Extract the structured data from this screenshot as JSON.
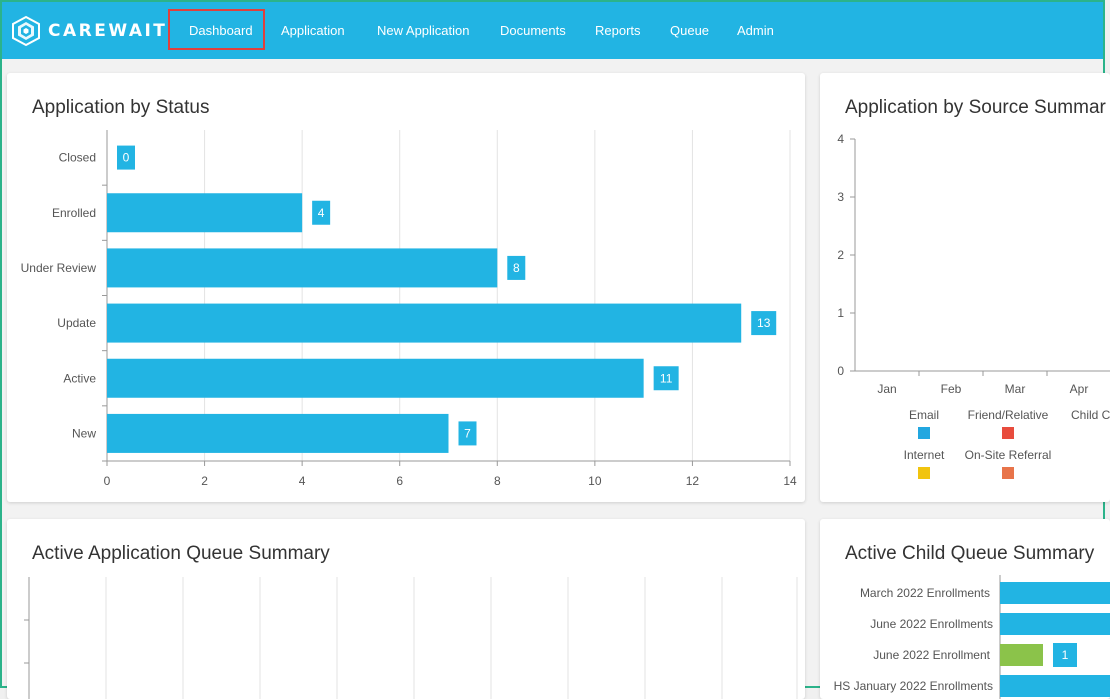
{
  "nav": {
    "logo_text": "CAREWAIT",
    "items": [
      {
        "label": "Dashboard",
        "active": true
      },
      {
        "label": "Application"
      },
      {
        "label": "New Application"
      },
      {
        "label": "Documents"
      },
      {
        "label": "Reports"
      },
      {
        "label": "Queue"
      },
      {
        "label": "Admin"
      }
    ]
  },
  "colors": {
    "accent": "#22b4e3",
    "active_border": "#e0403c"
  },
  "cards": {
    "status": {
      "title": "Application by Status"
    },
    "source": {
      "title": "Application by Source Summar"
    },
    "app_queue": {
      "title": "Active Application Queue Summary"
    },
    "child_queue": {
      "title": "Active Child Queue Summary"
    }
  },
  "chart_data": [
    {
      "type": "bar",
      "orientation": "horizontal",
      "title": "Application by Status",
      "categories": [
        "Closed",
        "Enrolled",
        "Under Review",
        "Update",
        "Active",
        "New"
      ],
      "values": [
        0,
        4,
        8,
        13,
        11,
        7
      ],
      "xlim": [
        0,
        14
      ],
      "xticks": [
        0,
        2,
        4,
        6,
        8,
        10,
        12,
        14
      ],
      "color": "#22b4e3",
      "grid": true
    },
    {
      "type": "line",
      "title": "Application by Source Summar",
      "categories": [
        "Jan",
        "Feb",
        "Mar",
        "Apr"
      ],
      "ylim": [
        0,
        4
      ],
      "yticks": [
        0,
        1,
        2,
        3,
        4
      ],
      "legend": [
        {
          "name": "Email",
          "color": "#22a7e0"
        },
        {
          "name": "Friend/Relative",
          "color": "#e84c3d"
        },
        {
          "name": "Child C",
          "color": "#22a7e0"
        },
        {
          "name": "Internet",
          "color": "#f1c40f"
        },
        {
          "name": "On-Site Referral",
          "color": "#e8744a"
        }
      ],
      "series": []
    },
    {
      "type": "bar",
      "title": "Active Application Queue Summary",
      "series": []
    },
    {
      "type": "bar",
      "orientation": "horizontal",
      "title": "Active Child Queue Summary",
      "categories": [
        "March 2022 Enrollments",
        "June 2022 Enrollments",
        "June 2022 Enrollment",
        "HS January 2022 Enrollments"
      ],
      "bars": [
        {
          "category": "March 2022 Enrollments",
          "color": "#22b4e3"
        },
        {
          "category": "June 2022 Enrollments",
          "color": "#22b4e3"
        },
        {
          "category": "June 2022 Enrollment",
          "value": 1,
          "value_label": "1",
          "color": "#8bc34a"
        },
        {
          "category": "HS January 2022 Enrollments",
          "color": "#22b4e3"
        }
      ]
    }
  ]
}
